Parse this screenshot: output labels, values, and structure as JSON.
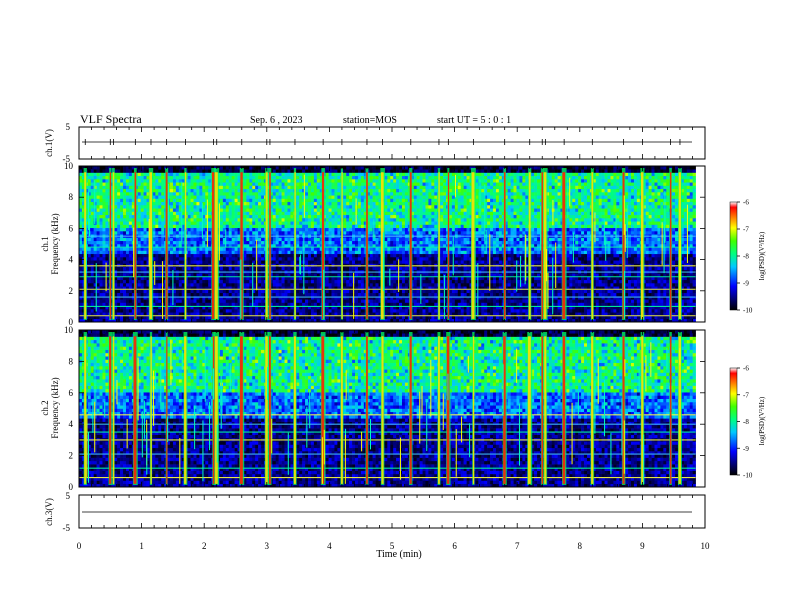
{
  "header": {
    "title": "VLF Spectra",
    "date": "Sep. 6 , 2023",
    "station": "station=MOS",
    "start_ut": "start UT =  5 : 0 : 1"
  },
  "chart_data": [
    {
      "type": "line",
      "panel": "ch.1 waveform",
      "ylabel": "ch.1(V)",
      "ylim": [
        -5,
        5
      ],
      "yticks": [
        5,
        -5
      ],
      "xlim": [
        0,
        10
      ],
      "series": [
        {
          "values_approx": 0
        }
      ]
    },
    {
      "type": "heatmap",
      "panel": "ch.1 spectrogram",
      "ylabel": "ch.1\nFrequency (kHz)",
      "ylabel_lines": [
        "ch.1",
        "Frequency (kHz)"
      ],
      "ylim": [
        0,
        10
      ],
      "yticks": [
        0,
        2,
        4,
        6,
        8,
        10
      ],
      "xlim": [
        0,
        10
      ],
      "data_end_min": 9.85,
      "colorbar": {
        "label": "log(PSD)(V²/Hz)",
        "range": [
          -10,
          -6
        ],
        "ticks": [
          -6,
          -7,
          -8,
          -9,
          -10
        ]
      },
      "sferic_times_min": [
        0.1,
        0.5,
        0.55,
        0.9,
        1.15,
        1.4,
        1.7,
        2.15,
        2.2,
        2.6,
        3.0,
        3.05,
        3.45,
        3.9,
        4.2,
        4.6,
        4.85,
        5.3,
        5.75,
        5.9,
        6.3,
        6.8,
        7.2,
        7.4,
        7.45,
        7.75,
        8.2,
        8.7,
        9.0,
        9.45,
        9.6
      ],
      "horizontal_lines_khz": [
        0.4,
        1.0,
        1.6,
        2.1,
        2.9,
        3.2,
        3.6,
        4.8,
        5.5
      ]
    },
    {
      "type": "heatmap",
      "panel": "ch.2 spectrogram",
      "ylabel": "ch.2\nFrequency (kHz)",
      "ylabel_lines": [
        "ch.2",
        "Frequency (kHz)"
      ],
      "ylim": [
        0,
        10
      ],
      "yticks": [
        0,
        2,
        4,
        6,
        8,
        10
      ],
      "xlim": [
        0,
        10
      ],
      "data_end_min": 9.85,
      "colorbar": {
        "label": "log(PSD)(V²/Hz)",
        "range": [
          -10,
          -6
        ],
        "ticks": [
          -6,
          -7,
          -8,
          -9,
          -10
        ]
      },
      "sferic_times_min": [
        0.1,
        0.5,
        0.55,
        0.9,
        1.15,
        1.4,
        1.7,
        2.15,
        2.2,
        2.6,
        3.0,
        3.05,
        3.45,
        3.9,
        4.2,
        4.6,
        4.85,
        5.3,
        5.75,
        5.9,
        6.3,
        6.8,
        7.2,
        7.4,
        7.45,
        7.75,
        8.2,
        8.7,
        9.0,
        9.45,
        9.6
      ],
      "horizontal_lines_khz": [
        0.6,
        1.2,
        2.1,
        3.0,
        3.5,
        4.0,
        4.6
      ]
    },
    {
      "type": "line",
      "panel": "ch.3 waveform",
      "ylabel": "ch.3(V)",
      "ylim": [
        -5,
        5
      ],
      "yticks": [
        5,
        -5
      ],
      "xlim": [
        0,
        10
      ],
      "xlabel": "Time (min)",
      "xticks": [
        0,
        1,
        2,
        3,
        4,
        5,
        6,
        7,
        8,
        9,
        10
      ],
      "series": [
        {
          "values_approx": 0
        }
      ]
    }
  ]
}
